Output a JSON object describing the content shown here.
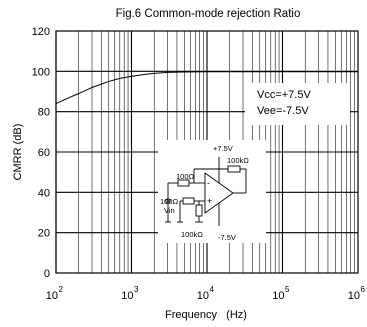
{
  "chart_data": {
    "type": "line",
    "title": "Fig.6 Common-mode rejection Ratio",
    "xlabel": "Frequency   (Hz)",
    "ylabel": "CMRR (dB)",
    "xscale": "log",
    "xlim": [
      100,
      1000000
    ],
    "ylim": [
      0,
      120
    ],
    "grid": true,
    "x_ticks": [
      100,
      1000,
      10000,
      100000,
      1000000
    ],
    "x_tick_base": "10",
    "x_tick_exponents": [
      "2",
      "3",
      "4",
      "5",
      "6"
    ],
    "y_ticks": [
      "0",
      "20",
      "40",
      "60",
      "80",
      "100",
      "120"
    ],
    "series": [
      {
        "x": [
          100,
          150,
          200,
          300,
          500,
          700,
          1000,
          1500,
          2000,
          3000,
          5000,
          10000,
          100000,
          1000000
        ],
        "values": [
          84,
          87,
          89,
          92,
          95,
          96.5,
          97.5,
          98.5,
          99,
          99.5,
          99.7,
          99.8,
          99.8,
          99.8
        ]
      }
    ],
    "annotation": {
      "vcc": "Vcc=+7.5V",
      "vee": "Vee=-7.5V"
    },
    "circuit": {
      "vplus": "+7.5V",
      "vminus": "-7.5V",
      "r_feedback": "100kΩ",
      "r_in1": "100Ω",
      "r_in2": "100Ω",
      "r_ground": "100kΩ",
      "vin": "Vin",
      "minus_sign": "-",
      "plus_sign": "+"
    }
  }
}
